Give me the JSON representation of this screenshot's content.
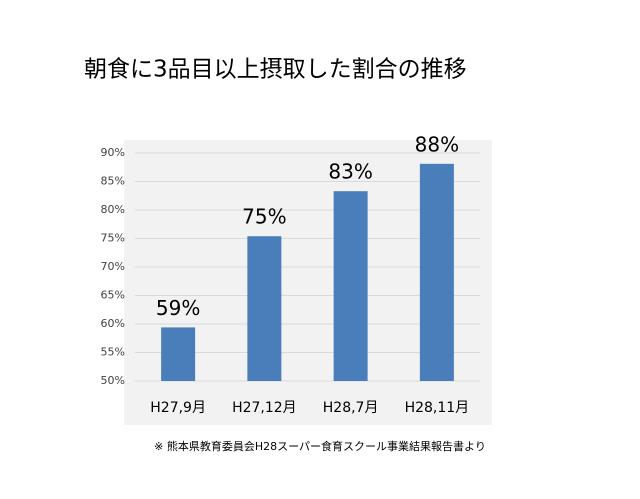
{
  "chart_data": {
    "type": "bar",
    "title": "朝食に3品目以上摂取した割合の推移",
    "categories": [
      "H27,9月",
      "H27,12月",
      "H28,7月",
      "H28,11月"
    ],
    "values": [
      59.4,
      75.4,
      83.3,
      88.1
    ],
    "value_labels": [
      "59%",
      "75%",
      "83%",
      "88%"
    ],
    "color": "#4a7ebb",
    "ylim": [
      50,
      90
    ],
    "yticks": [
      {
        "value": 50,
        "label": "50%"
      },
      {
        "value": 55,
        "label": "55%"
      },
      {
        "value": 60,
        "label": "60%"
      },
      {
        "value": 65,
        "label": "65%"
      },
      {
        "value": 70,
        "label": "70%"
      },
      {
        "value": 75,
        "label": "75%"
      },
      {
        "value": 80,
        "label": "80%"
      },
      {
        "value": 85,
        "label": "85%"
      },
      {
        "value": 90,
        "label": "90%"
      }
    ],
    "grid": true,
    "note": "※  熊本県教育委員会H28スーパー食育スクール事業結果報告書より"
  }
}
